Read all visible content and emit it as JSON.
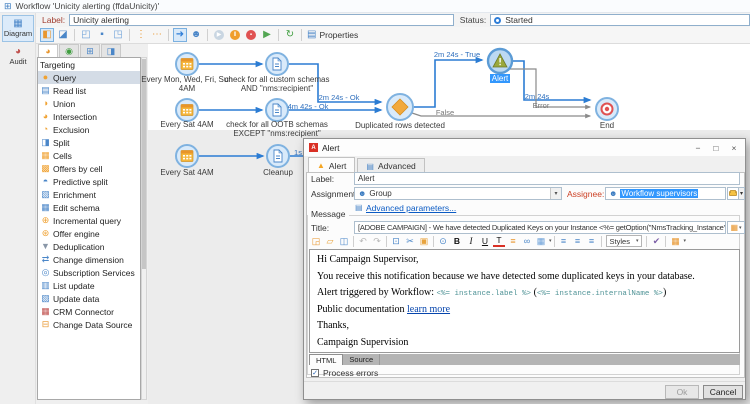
{
  "icons": {
    "app": "⊞",
    "diagram": "▦",
    "audit": "◕",
    "dialog_min": "−",
    "dialog_max": "□",
    "dialog_close": "×",
    "alert_tab": "▲",
    "advanced_tab": "▤",
    "group_people": "☻",
    "assignee_people": "☻",
    "advanced_params": "▤",
    "title_picker": "▦",
    "dropdown": "▾",
    "checkbox_check": "✓"
  },
  "window": {
    "title": "Workflow 'Unicity alerting (ffdaUnicity)'"
  },
  "header": {
    "label_caption": "Label:",
    "label_value": "Unicity alerting",
    "status_caption": "Status:",
    "status_value": "Started"
  },
  "nav": {
    "diagram_label": "Diagram",
    "audit_label": "Audit"
  },
  "main_toolbar": {
    "items": [
      {
        "name": "toggle-palette",
        "glyph": "◧",
        "color": "#e8962e",
        "active": true
      },
      {
        "name": "toggle-overview",
        "glyph": "◪",
        "color": "#4a86c8"
      },
      {
        "name": "sep"
      },
      {
        "name": "zoom-fit",
        "glyph": "◰",
        "color": "#6a9fd8"
      },
      {
        "name": "zoom-normal",
        "glyph": "▪",
        "color": "#4a86c8"
      },
      {
        "name": "zoom-area",
        "glyph": "◳",
        "color": "#6a9fd8"
      },
      {
        "name": "sep"
      },
      {
        "name": "vertical-layout",
        "glyph": "⋮",
        "color": "#e8962e"
      },
      {
        "name": "horizontal-layout",
        "glyph": "⋯",
        "color": "#e8962e"
      },
      {
        "name": "sep"
      },
      {
        "name": "move-mode",
        "glyph": "➜",
        "color": "#2f7ed8",
        "active": true
      },
      {
        "name": "simulate",
        "glyph": "☻",
        "color": "#4a86c8"
      },
      {
        "name": "sep"
      },
      {
        "name": "start",
        "glyph": "▶",
        "circle": "#c9d6e2"
      },
      {
        "name": "pause",
        "glyph": "Ⅱ",
        "circle": "#f09e2e"
      },
      {
        "name": "stop",
        "glyph": "▪",
        "circle": "#e05252"
      },
      {
        "name": "restart",
        "glyph": "▶",
        "color": "#53a653"
      },
      {
        "name": "sep"
      },
      {
        "name": "refresh",
        "glyph": "↻",
        "color": "#3f9e3f"
      },
      {
        "name": "sep"
      },
      {
        "name": "properties",
        "glyph": "▤",
        "color": "#4a86c8",
        "label": "Properties"
      }
    ]
  },
  "palette": {
    "tabs": [
      {
        "name": "targeting",
        "glyph": "◕",
        "color": "#e8962e",
        "active": true
      },
      {
        "name": "flow-control",
        "glyph": "◉",
        "color": "#3f9e3f"
      },
      {
        "name": "actions",
        "glyph": "⊞",
        "color": "#4a86c8"
      },
      {
        "name": "events",
        "glyph": "◨",
        "color": "#4a86c8"
      }
    ],
    "group_header": "Targeting",
    "items": [
      {
        "label": "Query",
        "glyph": "●",
        "color": "#f0a232",
        "selected": true
      },
      {
        "label": "Read list",
        "glyph": "▤",
        "color": "#4a86c8"
      },
      {
        "label": "Union",
        "glyph": "◑",
        "color": "#f0a232"
      },
      {
        "label": "Intersection",
        "glyph": "◕",
        "color": "#f0a232"
      },
      {
        "label": "Exclusion",
        "glyph": "◔",
        "color": "#f0a232"
      },
      {
        "label": "Split",
        "glyph": "◨",
        "color": "#4a86c8"
      },
      {
        "label": "Cells",
        "glyph": "▦",
        "color": "#f0a232"
      },
      {
        "label": "Offers by cell",
        "glyph": "▩",
        "color": "#f0a232"
      },
      {
        "label": "Predictive split",
        "glyph": "◓",
        "color": "#4a86c8"
      },
      {
        "label": "Enrichment",
        "glyph": "▧",
        "color": "#4a86c8"
      },
      {
        "label": "Edit schema",
        "glyph": "▦",
        "color": "#4a86c8"
      },
      {
        "label": "Incremental query",
        "glyph": "⊕",
        "color": "#f0a232"
      },
      {
        "label": "Offer engine",
        "glyph": "⊛",
        "color": "#f0a232"
      },
      {
        "label": "Deduplication",
        "glyph": "▼",
        "color": "#8a97a8"
      },
      {
        "label": "Change dimension",
        "glyph": "⇄",
        "color": "#4a86c8"
      },
      {
        "label": "Subscription Services",
        "glyph": "◎",
        "color": "#4a86c8"
      },
      {
        "label": "List update",
        "glyph": "▥",
        "color": "#4a86c8"
      },
      {
        "label": "Update data",
        "glyph": "▧",
        "color": "#4a86c8"
      },
      {
        "label": "CRM Connector",
        "glyph": "▦",
        "color": "#c0504d"
      },
      {
        "label": "Change Data Source",
        "glyph": "⊟",
        "color": "#e8962e"
      }
    ]
  },
  "canvas": {
    "nodes": [
      {
        "label": "Every Mon, Wed, Fri, Sun 4AM"
      },
      {
        "label": "check for all custom schemas AND \"nms:recipient\""
      },
      {
        "label": "Every Sat 4AM"
      },
      {
        "label": "check for all OOTB schemas EXCEPT \"nms:recipient\""
      },
      {
        "label": "Every Sat 4AM"
      },
      {
        "label": "Cleanup"
      },
      {
        "label": "Duplicated rows detected"
      },
      {
        "label": "Alert"
      },
      {
        "label": "End"
      }
    ],
    "transitions": {
      "t1": "2m 24s - Ok",
      "t2": "4m 42s - Ok",
      "t3": "2m 24s - True",
      "t4": "2m 24s",
      "t5": "Error",
      "t6": "False",
      "t7": "1s"
    }
  },
  "dialog": {
    "title": "Alert",
    "tabs": {
      "alert": "Alert",
      "advanced": "Advanced"
    },
    "label_caption": "Label:",
    "label_value": "Alert",
    "assignment_caption": "Assignment type:",
    "assignment_value": "Group",
    "assignee_caption": "Assignee:",
    "assignee_value": "Workflow supervisors",
    "advanced_link": "Advanced parameters...",
    "message_group": "Message",
    "title_caption": "Title:",
    "title_value": "[ADOBE CAMPAIGN] - We have detected Duplicated Keys on your Instance <%= getOption(\"NmsTracking_Instance\") %>",
    "editor": {
      "toolbar": [
        {
          "name": "new-document",
          "glyph": "◲",
          "color": "#e8962e"
        },
        {
          "name": "open",
          "glyph": "▱",
          "color": "#e8a33d"
        },
        {
          "name": "save",
          "glyph": "◫",
          "color": "#4a86c8"
        },
        {
          "name": "sep"
        },
        {
          "name": "undo",
          "glyph": "↶",
          "color": "#b8b8b8"
        },
        {
          "name": "redo",
          "glyph": "↷",
          "color": "#b8b8b8"
        },
        {
          "name": "sep"
        },
        {
          "name": "copy",
          "glyph": "⊡",
          "color": "#4a86c8"
        },
        {
          "name": "cut",
          "glyph": "✂",
          "color": "#4a86c8"
        },
        {
          "name": "paste",
          "glyph": "▣",
          "color": "#e8a33d"
        },
        {
          "name": "sep"
        },
        {
          "name": "find",
          "glyph": "⊙",
          "color": "#4a86c8"
        },
        {
          "name": "bold",
          "glyph": "B",
          "cls": "bold"
        },
        {
          "name": "italic",
          "glyph": "I",
          "cls": "italic"
        },
        {
          "name": "underline",
          "glyph": "U",
          "cls": "underline"
        },
        {
          "name": "text-color",
          "glyph": "T",
          "cls": "tcolor"
        },
        {
          "name": "list",
          "glyph": "≡",
          "color": "#e8962e"
        },
        {
          "name": "insert-link",
          "glyph": "∞",
          "color": "#4a86c8"
        },
        {
          "name": "insert-image",
          "glyph": "▦",
          "color": "#6a9fd8",
          "arrow": true
        },
        {
          "name": "sep"
        },
        {
          "name": "align-left",
          "glyph": "≡",
          "color": "#4a86c8"
        },
        {
          "name": "align-center",
          "glyph": "≡",
          "color": "#4a86c8"
        },
        {
          "name": "align-right",
          "glyph": "≡",
          "color": "#4a86c8"
        },
        {
          "name": "sep"
        },
        {
          "name": "styles",
          "kind": "select",
          "label": "Styles"
        },
        {
          "name": "sep"
        },
        {
          "name": "spellcheck",
          "glyph": "✔",
          "color": "#7b5ea7"
        },
        {
          "name": "sep"
        },
        {
          "name": "colors",
          "glyph": "▦",
          "color": "#e8962e",
          "arrow": true
        }
      ],
      "body": {
        "p1": "Hi Campaign Supervisor,",
        "p2": "You receive this notification because we have detected some duplicated keys in your database.",
        "p3_prefix": "Alert triggered by Workflow: ",
        "p3_code1": "<%= instance.label %>",
        "p3_mid": " (",
        "p3_code2": "<%= instance.internalName %>",
        "p3_suffix": ")",
        "p4_prefix": "Public documentation ",
        "p4_link": "learn more",
        "p5": "Thanks,",
        "p6": "Campaign Supervision"
      },
      "view_tabs": {
        "html": "HTML",
        "source": "Source"
      }
    },
    "process_errors_label": "Process errors",
    "ok_label": "Ok",
    "cancel_label": "Cancel"
  }
}
